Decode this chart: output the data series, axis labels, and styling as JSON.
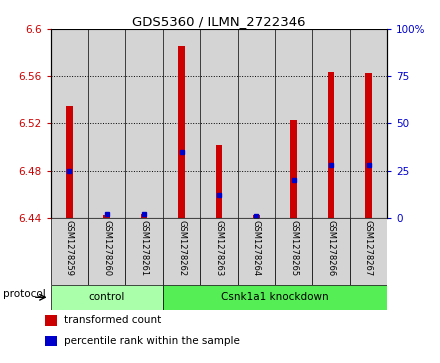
{
  "title": "GDS5360 / ILMN_2722346",
  "samples": [
    "GSM1278259",
    "GSM1278260",
    "GSM1278261",
    "GSM1278262",
    "GSM1278263",
    "GSM1278264",
    "GSM1278265",
    "GSM1278266",
    "GSM1278267"
  ],
  "red_bar_tops": [
    6.535,
    6.442,
    6.443,
    6.586,
    6.502,
    6.442,
    6.523,
    6.564,
    6.563
  ],
  "blue_pct": [
    25,
    2,
    2,
    35,
    12,
    1,
    20,
    28,
    28
  ],
  "base": 6.44,
  "ylim_left": [
    6.44,
    6.6
  ],
  "ylim_right": [
    0,
    100
  ],
  "yticks_left": [
    6.44,
    6.48,
    6.52,
    6.56,
    6.6
  ],
  "ytick_labels_left": [
    "6.44",
    "6.48",
    "6.52",
    "6.56",
    "6.6"
  ],
  "yticks_right": [
    0,
    25,
    50,
    75,
    100
  ],
  "ytick_labels_right": [
    "0",
    "25",
    "50",
    "75",
    "100%"
  ],
  "control_label": "control",
  "knockdown_label": "Csnk1a1 knockdown",
  "protocol_label": "protocol",
  "bar_color": "#cc0000",
  "blue_color": "#0000cc",
  "group_bg_control": "#aaffaa",
  "group_bg_knockdown": "#55ee55",
  "bar_bg": "#d4d4d4",
  "left_axis_color": "#cc0000",
  "right_axis_color": "#0000cc",
  "legend_red_label": "transformed count",
  "legend_blue_label": "percentile rank within the sample",
  "n_control": 3,
  "n_knockdown": 6
}
